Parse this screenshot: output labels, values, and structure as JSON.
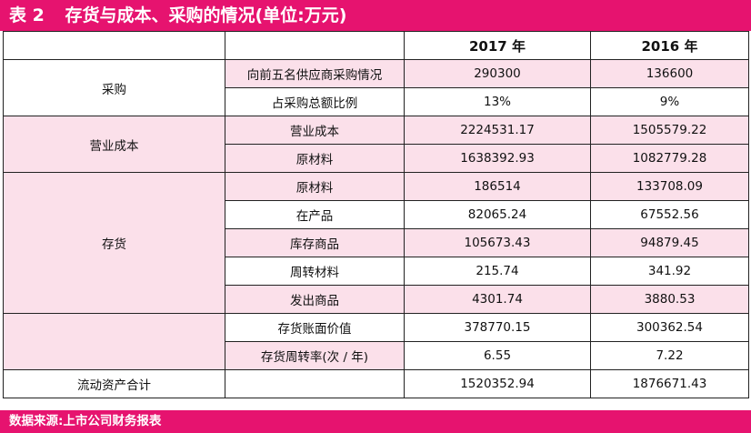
{
  "title": {
    "number": "表 2",
    "text": "存货与成本、采购的情况(单位:万元)"
  },
  "header": {
    "col1": "",
    "col2": "",
    "col3": "2017 年",
    "col4": "2016 年"
  },
  "sections": {
    "purchase": "采购",
    "cost": "营业成本",
    "inventory": "存货",
    "inventory_summary": "",
    "current_assets": "流动资产合计"
  },
  "rows": [
    {
      "label": "向前五名供应商采购情况",
      "y2017": "290300",
      "y2016": "136600"
    },
    {
      "label": "占采购总额比例",
      "y2017": "13%",
      "y2016": "9%"
    },
    {
      "label": "营业成本",
      "y2017": "2224531.17",
      "y2016": "1505579.22"
    },
    {
      "label": "原材料",
      "y2017": "1638392.93",
      "y2016": "1082779.28"
    },
    {
      "label": "原材料",
      "y2017": "186514",
      "y2016": "133708.09"
    },
    {
      "label": "在产品",
      "y2017": "82065.24",
      "y2016": "67552.56"
    },
    {
      "label": "库存商品",
      "y2017": "105673.43",
      "y2016": "94879.45"
    },
    {
      "label": "周转材料",
      "y2017": "215.74",
      "y2016": "341.92"
    },
    {
      "label": "发出商品",
      "y2017": "4301.74",
      "y2016": "3880.53"
    },
    {
      "label": "存货账面价值",
      "y2017": "378770.15",
      "y2016": "300362.54"
    },
    {
      "label": "存货周转率(次 / 年)",
      "y2017": "6.55",
      "y2016": "7.22"
    },
    {
      "label": "",
      "y2017": "1520352.94",
      "y2016": "1876671.43"
    }
  ],
  "source": "数据来源:上市公司财务报表",
  "colors": {
    "accent": "#e6136f",
    "row_tint": "#fbe0ea"
  }
}
